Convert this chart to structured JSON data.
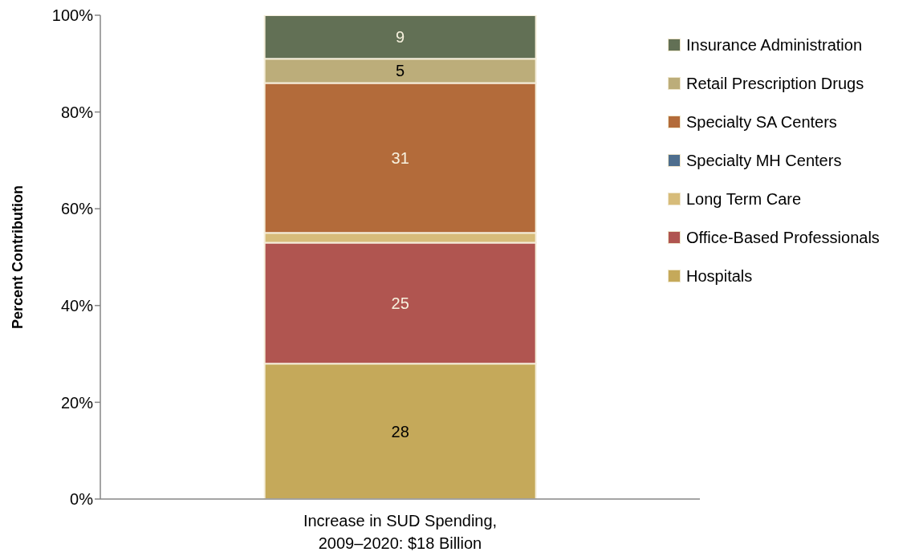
{
  "chart_data": {
    "type": "bar",
    "stacked": true,
    "ylabel": "Percent Contribution",
    "categories": [
      "Increase in SUD Spending, 2009–2020: $18 Billion"
    ],
    "series": [
      {
        "name": "Hospitals",
        "color": "#c5a95a",
        "values": [
          28
        ],
        "value_labels": [
          "28"
        ]
      },
      {
        "name": "Office-Based Professionals",
        "color": "#b05550",
        "values": [
          25
        ],
        "value_labels": [
          "25"
        ]
      },
      {
        "name": "Long Term Care",
        "color": "#d7bc7a",
        "values": [
          2
        ],
        "value_labels": [
          null
        ]
      },
      {
        "name": "Specialty MH Centers",
        "color": "#4e6e8e",
        "values": [
          0
        ],
        "value_labels": [
          null
        ]
      },
      {
        "name": "Specialty SA Centers",
        "color": "#b36b3a",
        "values": [
          31
        ],
        "value_labels": [
          "31"
        ]
      },
      {
        "name": "Retail Prescription Drugs",
        "color": "#bcad7a",
        "values": [
          5
        ],
        "value_labels": [
          "5"
        ]
      },
      {
        "name": "Insurance Administration",
        "color": "#627055",
        "values": [
          9
        ],
        "value_labels": [
          "9"
        ]
      }
    ],
    "ylim": [
      0,
      100
    ],
    "yticks": [
      {
        "value": 0,
        "label": "0%"
      },
      {
        "value": 20,
        "label": "20%"
      },
      {
        "value": 40,
        "label": "40%"
      },
      {
        "value": 60,
        "label": "60%"
      },
      {
        "value": 80,
        "label": "80%"
      },
      {
        "value": 100,
        "label": "100%"
      }
    ],
    "legend": "right"
  }
}
